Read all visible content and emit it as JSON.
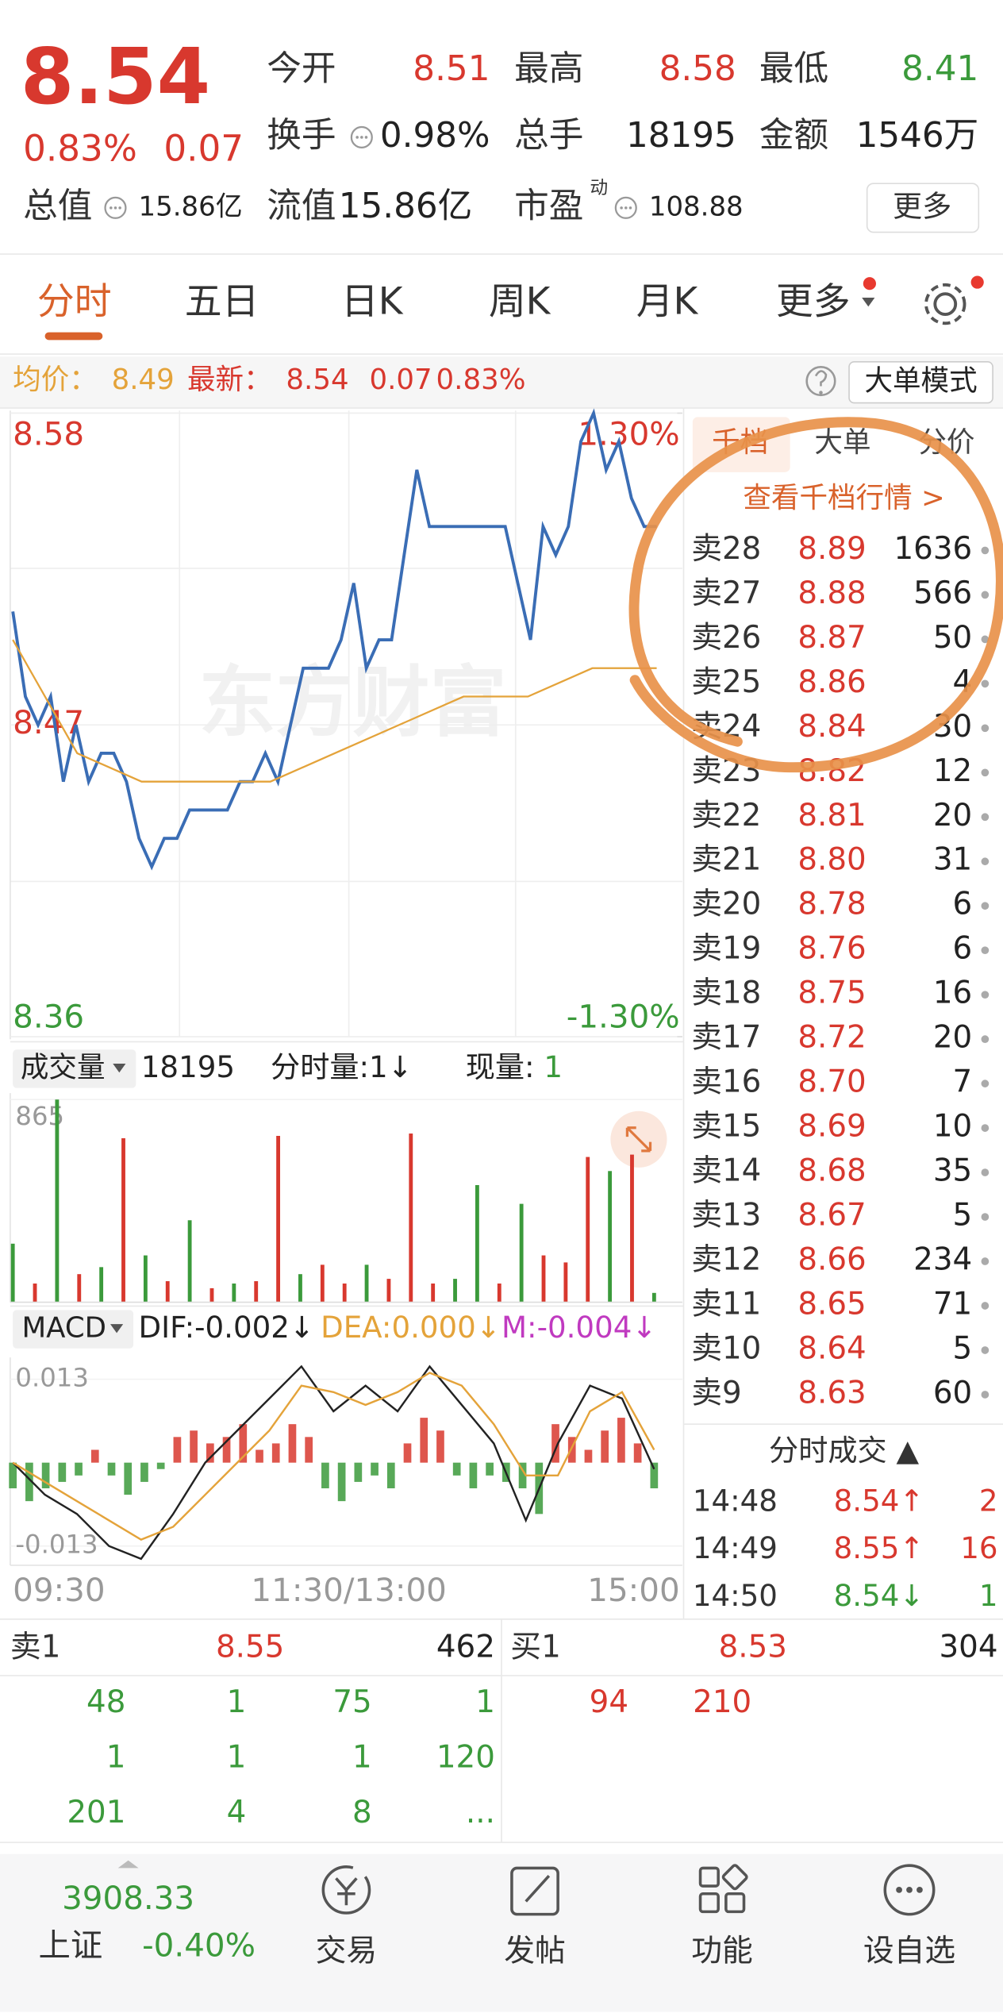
{
  "header": {
    "price": "8.54",
    "change_pct": "0.83%",
    "change": "0.07",
    "fields": [
      {
        "label": "今开",
        "value": "8.51",
        "color": "#d8382e"
      },
      {
        "label": "最高",
        "value": "8.58",
        "color": "#d8382e"
      },
      {
        "label": "最低",
        "value": "8.41",
        "color": "#3b9a3b"
      },
      {
        "label": "换手",
        "value": "0.98%",
        "color": "#222"
      },
      {
        "label": "总手",
        "value": "18195",
        "color": "#222"
      },
      {
        "label": "金额",
        "value": "1546万",
        "color": "#222"
      }
    ],
    "stats": [
      {
        "label": "总值",
        "value": "15.86亿"
      },
      {
        "label": "流值",
        "value": "15.86亿"
      },
      {
        "label": "市盈",
        "sup": "动",
        "value": "108.88"
      }
    ],
    "button": "更多"
  },
  "tabs": [
    "分时",
    "五日",
    "日K",
    "周K",
    "月K",
    "更多"
  ],
  "info_bar": {
    "avg_label": "均价：",
    "avg": "8.49",
    "latest_label": "最新：",
    "latest": "8.54",
    "change": "0.07",
    "change_pct": "0.83%",
    "button": "大单模式"
  },
  "watermark": "东方财富",
  "volume_header": {
    "menu": "成交量",
    "total": "18195",
    "per_min": "分时量:1↓",
    "current_label": "现量:",
    "current": "1"
  },
  "macd_header": {
    "menu": "MACD",
    "dif": "DIF:-0.002↓",
    "dea": "DEA:0.000↓",
    "m": "M:-0.004↓"
  },
  "time_labels": [
    "09:30",
    "11:30/13:00",
    "15:00"
  ],
  "chart_data": [
    {
      "type": "line",
      "ylim": [
        8.36,
        8.58
      ],
      "yticks": [
        8.58,
        8.47,
        8.36
      ],
      "y2lim": [
        -1.3,
        1.3
      ],
      "y2ticks": [
        {
          "value": 1.3,
          "label": "1.30%"
        },
        {
          "value": -1.3,
          "label": "-1.30%"
        }
      ],
      "series": [
        {
          "color": "#3a6db5",
          "values": [
            8.51,
            8.48,
            8.47,
            8.48,
            8.45,
            8.47,
            8.45,
            8.46,
            8.46,
            8.45,
            8.43,
            8.42,
            8.43,
            8.43,
            8.44,
            8.44,
            8.44,
            8.44,
            8.45,
            8.45,
            8.46,
            8.45,
            8.47,
            8.49,
            8.49,
            8.49,
            8.5,
            8.52,
            8.49,
            8.5,
            8.5,
            8.53,
            8.56,
            8.54,
            8.54,
            8.54,
            8.54,
            8.54,
            8.54,
            8.54,
            8.52,
            8.5,
            8.54,
            8.53,
            8.54,
            8.57,
            8.58,
            8.56,
            8.57,
            8.55,
            8.54,
            8.54
          ]
        },
        {
          "color": "#e4a33a",
          "values": [
            8.5,
            8.46,
            8.45,
            8.45,
            8.45,
            8.46,
            8.47,
            8.48,
            8.48,
            8.49,
            8.49
          ]
        }
      ]
    },
    {
      "type": "bar",
      "ylim": [
        0,
        865
      ],
      "yticks": [
        865
      ],
      "series": [
        {
          "color": "#d8382e",
          "values": [
            null,
            80,
            null,
            120,
            null,
            700,
            null,
            90,
            null,
            60,
            null,
            90,
            710,
            null,
            160,
            80,
            null,
            100,
            720,
            80,
            null,
            null,
            80,
            null,
            200,
            170,
            620,
            null,
            630,
            null
          ]
        },
        {
          "color": "#3b9a3b",
          "values": [
            250,
            null,
            865,
            null,
            150,
            null,
            200,
            null,
            350,
            null,
            80,
            null,
            null,
            120,
            null,
            null,
            160,
            null,
            null,
            null,
            100,
            500,
            null,
            420,
            null,
            null,
            null,
            560,
            null,
            40
          ]
        }
      ]
    },
    {
      "type": "macd",
      "ylim": [
        -0.013,
        0.013
      ],
      "yticks": [
        0.013,
        -0.013
      ],
      "up_color": "#d8382e",
      "down_color": "#3b9a3b",
      "histogram": [
        -0.004,
        -0.006,
        -0.004,
        -0.003,
        -0.002,
        0.002,
        -0.002,
        -0.005,
        -0.003,
        -0.001,
        0.004,
        0.005,
        0.003,
        0.004,
        0.006,
        0.002,
        0.003,
        0.006,
        0.004,
        -0.004,
        -0.006,
        -0.003,
        -0.002,
        -0.004,
        0.003,
        0.007,
        0.005,
        -0.002,
        -0.004,
        -0.002,
        -0.003,
        -0.004,
        -0.008,
        0.006,
        0.004,
        0.002,
        0.005,
        0.007,
        0.003,
        -0.004
      ],
      "series": [
        {
          "color": "#222222",
          "values": [
            0,
            -0.005,
            -0.008,
            -0.013,
            -0.015,
            -0.008,
            0,
            0.005,
            0.01,
            0.015,
            0.008,
            0.012,
            0.008,
            0.015,
            0.009,
            0.003,
            -0.009,
            0.003,
            0.012,
            0.01,
            -0.001
          ]
        },
        {
          "color": "#e4a33a",
          "values": [
            0,
            -0.003,
            -0.006,
            -0.009,
            -0.012,
            -0.01,
            -0.005,
            0,
            0.005,
            0.012,
            0.011,
            0.009,
            0.011,
            0.014,
            0.012,
            0.006,
            -0.002,
            -0.002,
            0.008,
            0.011,
            0.002
          ]
        }
      ]
    }
  ],
  "order_book": {
    "tabs": [
      "千档",
      "大单",
      "分价"
    ],
    "link": "查看千档行情 >",
    "rows": [
      {
        "label": "卖28",
        "price": "8.89",
        "qty": "1636"
      },
      {
        "label": "卖27",
        "price": "8.88",
        "qty": "566"
      },
      {
        "label": "卖26",
        "price": "8.87",
        "qty": "50"
      },
      {
        "label": "卖25",
        "price": "8.86",
        "qty": "4"
      },
      {
        "label": "卖24",
        "price": "8.84",
        "qty": "30"
      },
      {
        "label": "卖23",
        "price": "8.82",
        "qty": "12"
      },
      {
        "label": "卖22",
        "price": "8.81",
        "qty": "20"
      },
      {
        "label": "卖21",
        "price": "8.80",
        "qty": "31"
      },
      {
        "label": "卖20",
        "price": "8.78",
        "qty": "6"
      },
      {
        "label": "卖19",
        "price": "8.76",
        "qty": "6"
      },
      {
        "label": "卖18",
        "price": "8.75",
        "qty": "16"
      },
      {
        "label": "卖17",
        "price": "8.72",
        "qty": "20"
      },
      {
        "label": "卖16",
        "price": "8.70",
        "qty": "7"
      },
      {
        "label": "卖15",
        "price": "8.69",
        "qty": "10"
      },
      {
        "label": "卖14",
        "price": "8.68",
        "qty": "35"
      },
      {
        "label": "卖13",
        "price": "8.67",
        "qty": "5"
      },
      {
        "label": "卖12",
        "price": "8.66",
        "qty": "234"
      },
      {
        "label": "卖11",
        "price": "8.65",
        "qty": "71"
      },
      {
        "label": "卖10",
        "price": "8.64",
        "qty": "5"
      },
      {
        "label": "卖9",
        "price": "8.63",
        "qty": "60"
      }
    ]
  },
  "trades": {
    "title": "分时成交 ▲",
    "rows": [
      {
        "time": "14:48",
        "price": "8.54↑",
        "qty": "2",
        "color": "#d8382e"
      },
      {
        "time": "14:49",
        "price": "8.55↑",
        "qty": "16",
        "color": "#d8382e"
      },
      {
        "time": "14:50",
        "price": "8.54↓",
        "qty": "1",
        "color": "#3b9a3b"
      }
    ]
  },
  "bottom_book": {
    "ask": {
      "label": "卖1",
      "price": "8.55",
      "qty": "462",
      "cells": [
        [
          "48",
          "1",
          "75",
          "1"
        ],
        [
          "1",
          "1",
          "1",
          "120"
        ],
        [
          "201",
          "4",
          "8",
          "..."
        ]
      ]
    },
    "bid": {
      "label": "买1",
      "price": "8.53",
      "qty": "304",
      "cells": [
        [
          "94",
          "210"
        ]
      ]
    }
  },
  "nav": {
    "index_value": "3908.33",
    "index_name": "上证",
    "index_change": "-0.40%",
    "items": [
      "交易",
      "发帖",
      "功能",
      "设自选"
    ]
  }
}
